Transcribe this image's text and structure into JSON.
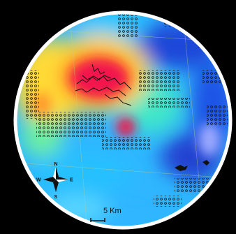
{
  "map": {
    "scale_bar": {
      "label": "5 Km"
    },
    "compass": {
      "north": "N",
      "south": "S",
      "east": "E",
      "west": "W"
    },
    "colors": {
      "background": "#000000",
      "frame": "#ffffff",
      "low": "#1f4fe0",
      "mid_low": "#2aa8ff",
      "mid": "#36e3d0",
      "mid_high": "#ffe23a",
      "high": "#ff7a1a",
      "peak": "#f0184c",
      "points": "#111111"
    }
  }
}
